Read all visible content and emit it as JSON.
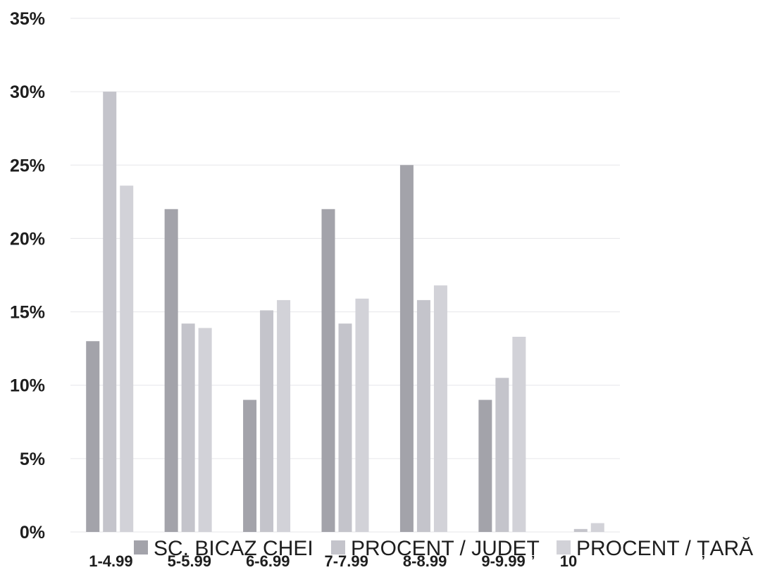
{
  "chart_data": {
    "type": "bar",
    "categories": [
      "1-4.99",
      "5-5.99",
      "6-6.99",
      "7-7.99",
      "8-8.99",
      "9-9.99",
      "10"
    ],
    "series": [
      {
        "name": "SC. BICAZ CHEI",
        "color": "#a3a3aa",
        "values": [
          13,
          22,
          9,
          22,
          25,
          9,
          0
        ]
      },
      {
        "name": "PROCENT / JUDEȚ",
        "color": "#c4c4cb",
        "values": [
          30,
          14.2,
          15.1,
          14.2,
          15.8,
          10.5,
          0.2
        ]
      },
      {
        "name": "PROCENT / ȚARĂ",
        "color": "#d2d2d8",
        "values": [
          23.6,
          13.9,
          15.8,
          15.9,
          16.8,
          13.3,
          0.6
        ]
      }
    ],
    "ylim": [
      0,
      35
    ],
    "yticks": [
      "0%",
      "5%",
      "10%",
      "15%",
      "20%",
      "25%",
      "30%",
      "35%"
    ],
    "grid": true,
    "legend_position": "bottom"
  }
}
